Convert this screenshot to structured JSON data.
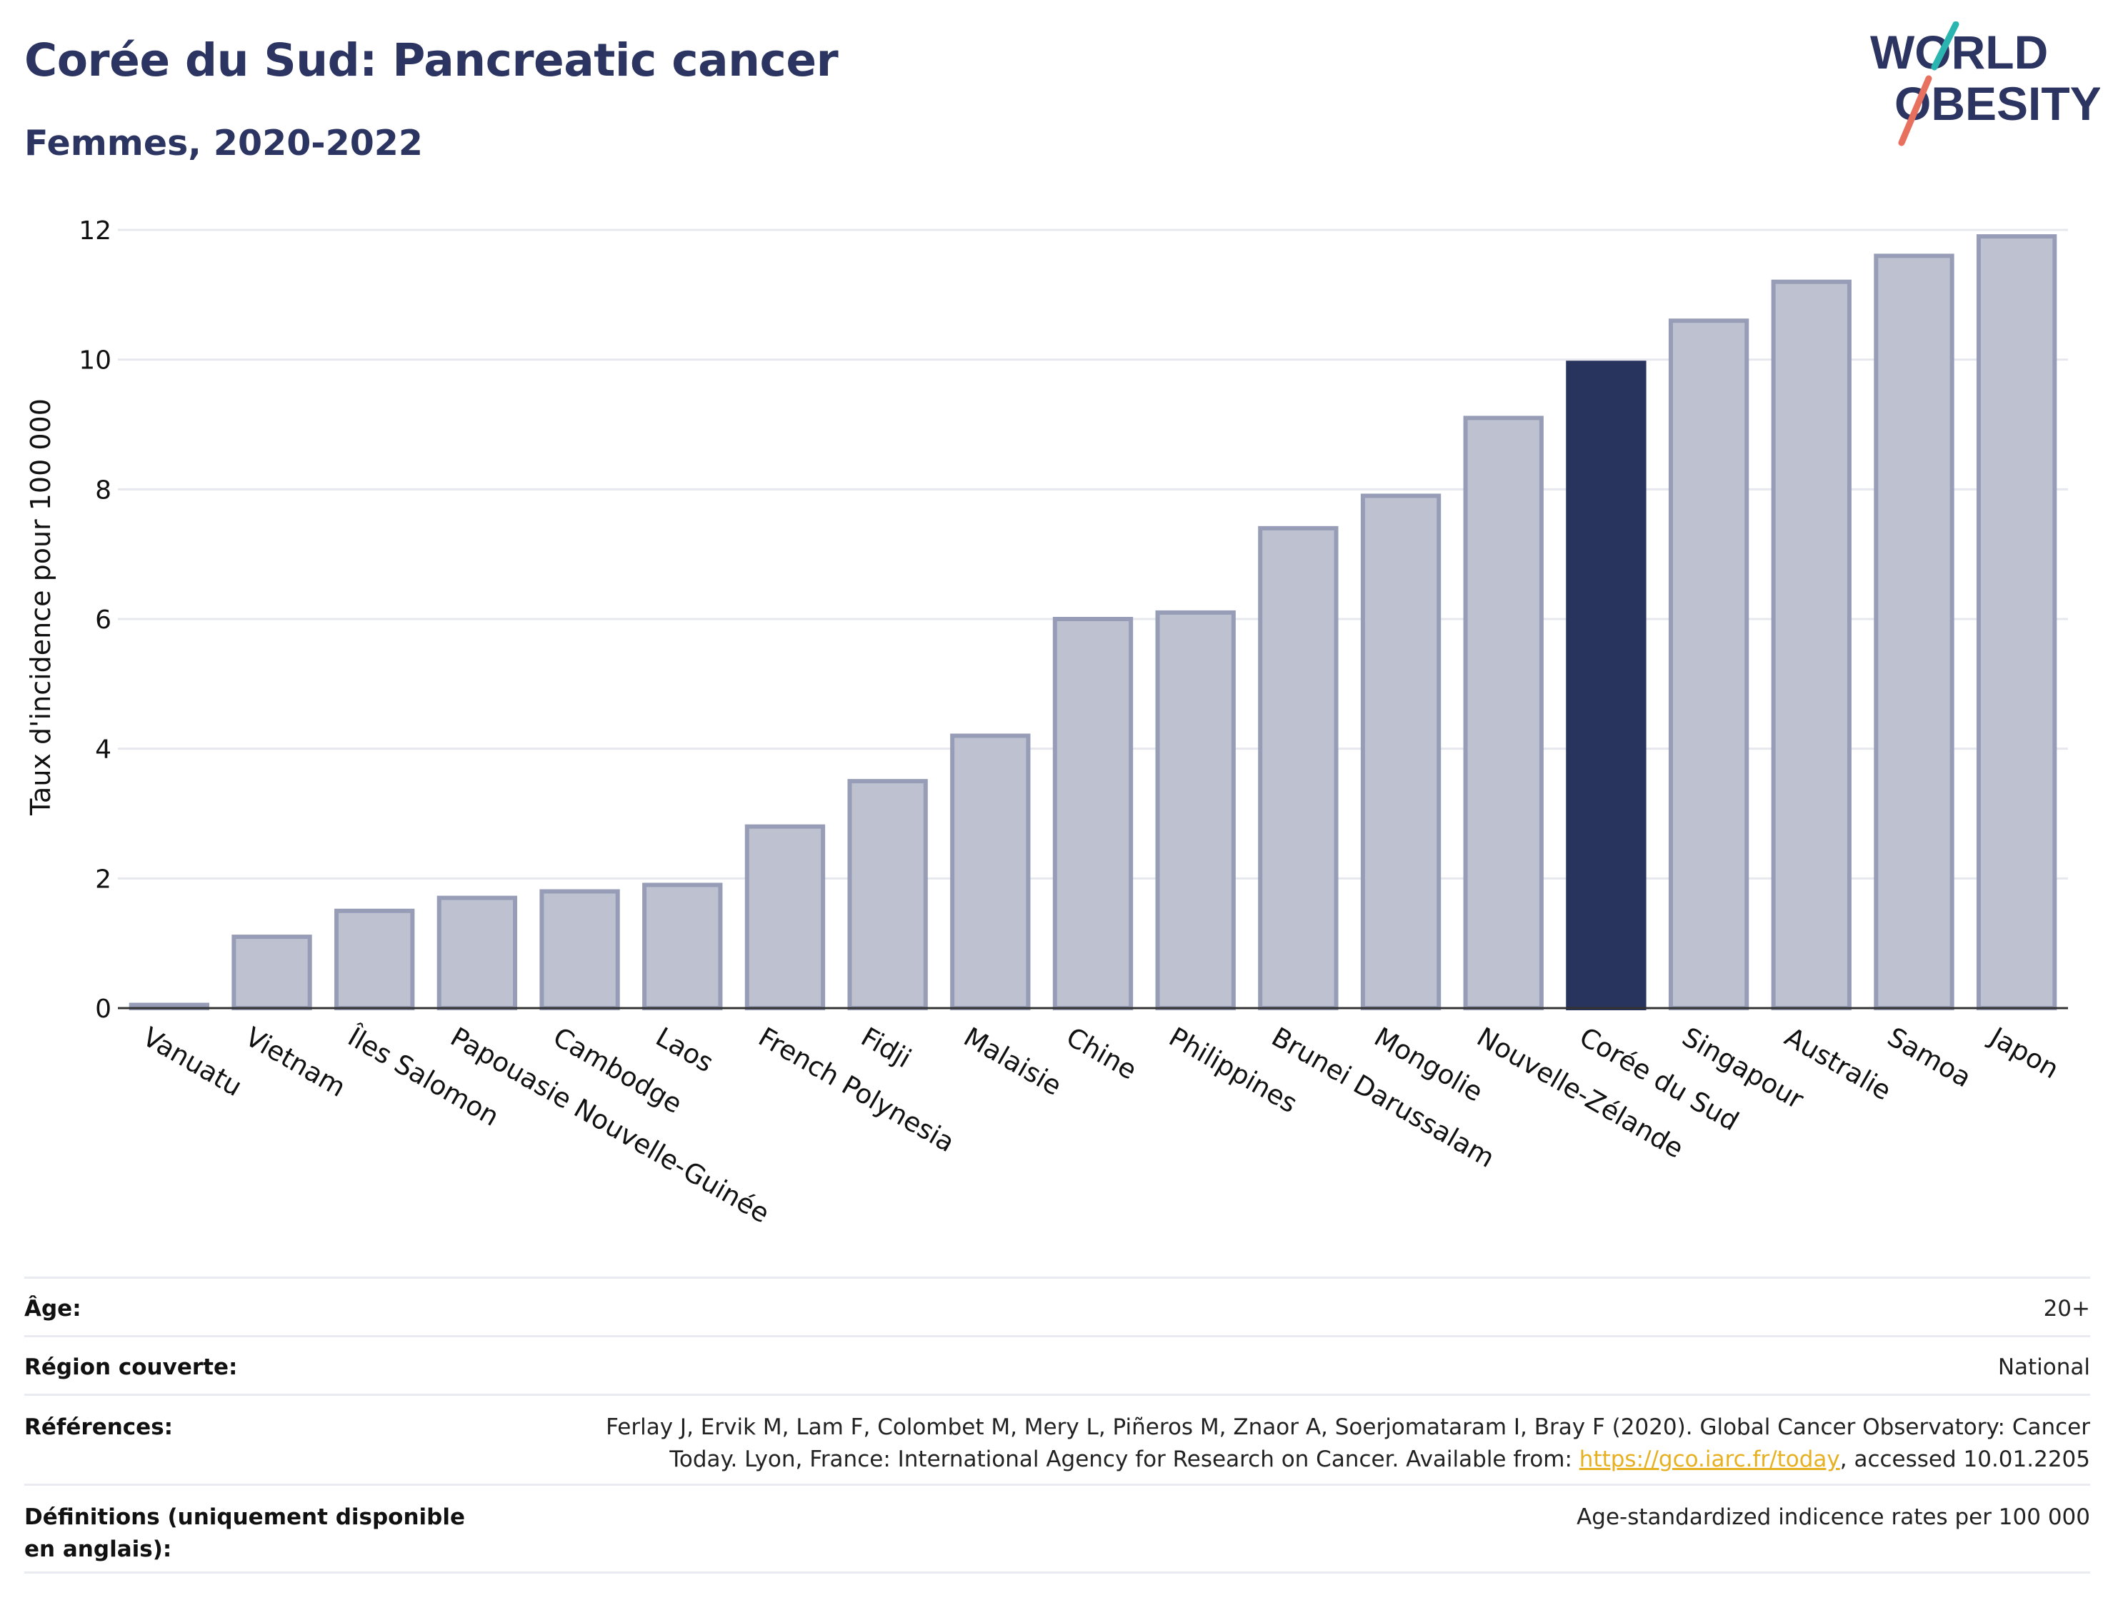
{
  "header": {
    "title": "Corée du Sud: Pancreatic cancer",
    "subtitle": "Femmes, 2020-2022"
  },
  "logo": {
    "line1": "WORLD",
    "line2": "OBESITY"
  },
  "colors": {
    "highlight": "#29345e",
    "bar": "#bec2d0",
    "bar_border": "#979db6",
    "axis_text": "#111111"
  },
  "chart_data": {
    "type": "bar",
    "categories": [
      "Vanuatu",
      "Vietnam",
      "Îles Salomon",
      "Papouasie Nouvelle-Guinée",
      "Cambodge",
      "Laos",
      "French Polynesia",
      "Fidji",
      "Malaisie",
      "Chine",
      "Philippines",
      "Brunei Darussalam",
      "Mongolie",
      "Nouvelle-Zélande",
      "Corée du Sud",
      "Singapour",
      "Australie",
      "Samoa",
      "Japon"
    ],
    "values": [
      0.05,
      1.1,
      1.5,
      1.7,
      1.8,
      1.9,
      2.8,
      3.5,
      4.2,
      6.0,
      6.1,
      7.4,
      7.9,
      9.1,
      9.95,
      10.6,
      11.2,
      11.6,
      11.9
    ],
    "highlight": "Corée du Sud",
    "ylabel": "Taux d'incidence pour 100 000",
    "ylim": [
      0,
      12
    ],
    "yticks": [
      0,
      2,
      4,
      6,
      8,
      10,
      12
    ],
    "grid": true
  },
  "meta": {
    "age_label": "Âge:",
    "age_value": "20+",
    "region_label": "Région couverte:",
    "region_value": "National",
    "ref_label": "Références:",
    "ref_text_1": "Ferlay J, Ervik M, Lam F, Colombet M, Mery L, Piñeros M, Znaor A, Soerjomataram I, Bray F (2020). Global Cancer Observatory: Cancer Today. Lyon, France: International Agency for Research on Cancer. Available from: ",
    "ref_link": "https://gco.iarc.fr/today",
    "ref_text_2": ", accessed 10.01.2205",
    "def_label": "Définitions (uniquement disponible en anglais):",
    "def_value": "Age-standardized indicence rates per 100 000"
  }
}
